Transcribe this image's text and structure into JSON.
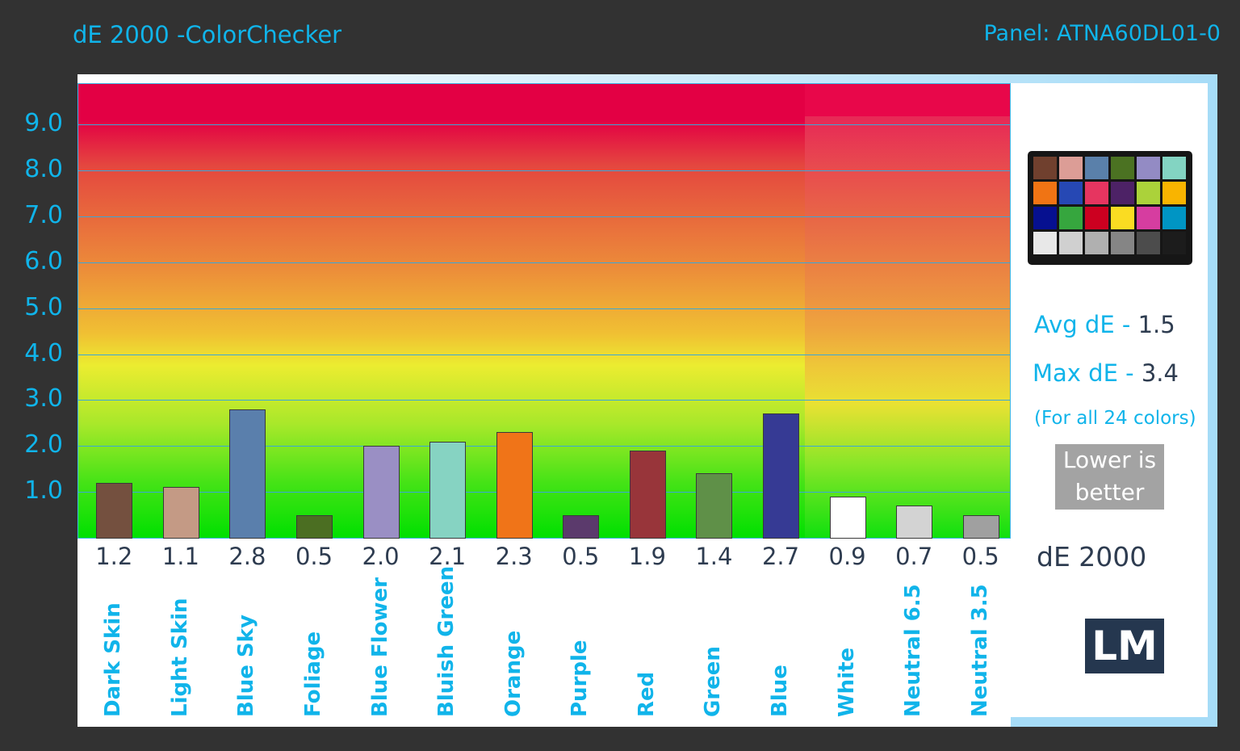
{
  "chart_data": {
    "type": "bar",
    "title": "dE 2000 -ColorChecker",
    "subtitle": "Panel: ATNA60DL01-0",
    "categories": [
      "Dark Skin",
      "Light Skin",
      "Blue Sky",
      "Foliage",
      "Blue Flower",
      "Bluish Green",
      "Orange",
      "Purple",
      "Red",
      "Green",
      "Blue",
      "White",
      "Neutral 6.5",
      "Neutral 3.5"
    ],
    "values": [
      1.2,
      1.1,
      2.8,
      0.5,
      2.0,
      2.1,
      2.3,
      0.5,
      1.9,
      1.4,
      2.7,
      0.9,
      0.7,
      0.5
    ],
    "value_labels": [
      "1.2",
      "1.1",
      "2.8",
      "0.5",
      "2.0",
      "2.1",
      "2.3",
      "0.5",
      "1.9",
      "1.4",
      "2.7",
      "0.9",
      "0.7",
      "0.5"
    ],
    "bar_colors": [
      "#74503f",
      "#c49a85",
      "#5a7fac",
      "#4b6e22",
      "#9a8fc4",
      "#86d3c2",
      "#f07418",
      "#5b3a6c",
      "#98353a",
      "#5f9048",
      "#363a94",
      "#ffffff",
      "#d3d3d3",
      "#a0a0a0"
    ],
    "yticks": [
      "1.0",
      "2.0",
      "3.0",
      "4.0",
      "5.0",
      "6.0",
      "7.0",
      "8.0",
      "9.0"
    ],
    "ylim": [
      0,
      9.9
    ],
    "grid": true,
    "xlabel": "dE 2000"
  },
  "side_panel": {
    "avg_label": "Avg dE - ",
    "avg_value": "1.5",
    "max_label": "Max dE - ",
    "max_value": "3.4",
    "note": "(For all 24 colors)",
    "lower_line1": "Lower is",
    "lower_line2": "better",
    "logo": "LM",
    "checker_colors": [
      "#70402e",
      "#dc9d96",
      "#5a80aa",
      "#4b7222",
      "#938bc4",
      "#83d4c2",
      "#f07414",
      "#2648b4",
      "#e63560",
      "#4d2266",
      "#abd23a",
      "#f9b400",
      "#061090",
      "#36a63e",
      "#cc0020",
      "#fadc22",
      "#d63da0",
      "#0095c4",
      "#e8e8e8",
      "#d0d0d0",
      "#b0b0b0",
      "#858585",
      "#4c4c4c",
      "#1c1c1c"
    ]
  }
}
